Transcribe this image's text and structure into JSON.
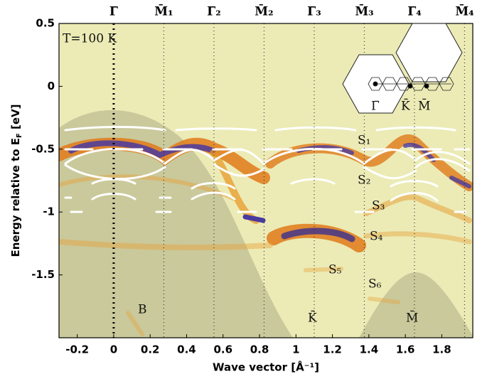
{
  "chart_data": {
    "type": "heatmap-bands",
    "ylabel": [
      "Energy relative to E",
      "F",
      " [eV]"
    ],
    "xlabel": "Wave vector [Å⁻¹]",
    "xlim": [
      -0.3,
      1.97
    ],
    "ylim": [
      -2.0,
      0.5
    ],
    "xticks": [
      -0.2,
      0,
      0.2,
      0.4,
      0.6,
      0.8,
      1,
      1.2,
      1.4,
      1.6,
      1.8
    ],
    "yticks": [
      0.5,
      0,
      -0.5,
      -1,
      -1.5
    ],
    "top_ticks": [
      {
        "value": 0,
        "label": "Γ̄"
      },
      {
        "value": 0.275,
        "label": "M̄₁"
      },
      {
        "value": 0.55,
        "label": "Γ̄₂"
      },
      {
        "value": 0.825,
        "label": "M̄₂"
      },
      {
        "value": 1.1,
        "label": "Γ̄₃"
      },
      {
        "value": 1.375,
        "label": "M̄₃"
      },
      {
        "value": 1.65,
        "label": "Γ̄₄"
      },
      {
        "value": 1.925,
        "label": "M̄₄"
      }
    ],
    "annotations": [
      "T=100 K",
      "S₁",
      "S₂",
      "S₃",
      "S₄",
      "S₅",
      "S₆",
      "B",
      "K̄",
      "M̄"
    ],
    "inset_labels": [
      "Γ̄",
      "K̄",
      "M̄"
    ]
  }
}
